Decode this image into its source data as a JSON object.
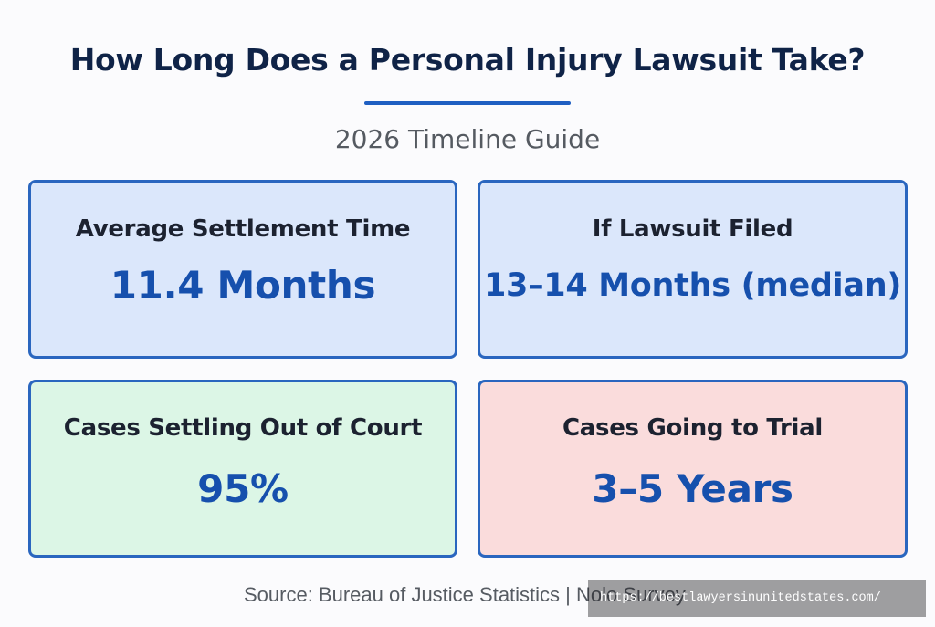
{
  "header": {
    "title": "How Long Does a Personal Injury Lawsuit Take?",
    "subtitle": "2026 Timeline Guide"
  },
  "cards": [
    {
      "label": "Average Settlement Time",
      "value": "11.4 Months",
      "color": "#dbe7fb"
    },
    {
      "label": "If Lawsuit Filed",
      "value": "13–14 Months (median)",
      "color": "#dbe7fb"
    },
    {
      "label": "Cases Settling Out of Court",
      "value": "95%",
      "color": "#dcf6e6"
    },
    {
      "label": "Cases Going to Trial",
      "value": "3–5 Years",
      "color": "#fadcdc"
    }
  ],
  "footer": {
    "source": "Source: Bureau of Justice Statistics | Nolo Survey",
    "url": "https://bestlawyersinunitedstates.com/"
  },
  "colors": {
    "accent": "#1f5fc2",
    "value_text": "#1650ad",
    "title_text": "#0f2347"
  }
}
